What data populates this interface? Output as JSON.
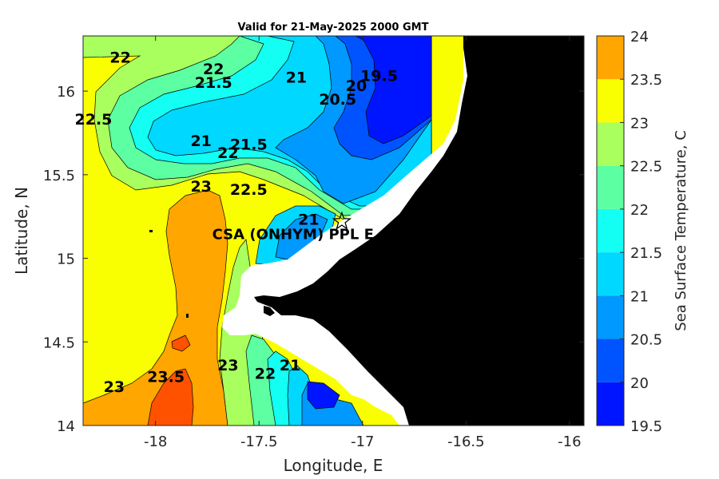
{
  "chart_data": {
    "type": "contour map",
    "title": "Valid for 21-May-2025 2000 GMT",
    "xlabel": "Longitude, E",
    "ylabel": "Latitude, N",
    "xlim": [
      -18.35,
      -15.93
    ],
    "ylim": [
      14.0,
      16.33
    ],
    "xticks": [
      -18,
      -17.5,
      -17,
      -16.5,
      -16
    ],
    "yticks": [
      14,
      14.5,
      15,
      15.5,
      16
    ],
    "colorbar": {
      "label": "Sea Surface Temperature, C",
      "levels": [
        19.5,
        20,
        20.5,
        21,
        21.5,
        22,
        22.5,
        23,
        23.5,
        24
      ],
      "colors": [
        "#0015ff",
        "#0054ff",
        "#0099ff",
        "#00d8ff",
        "#13fff3",
        "#5cffa2",
        "#a8ff5d",
        "#f9ff00",
        "#ffa600",
        "#ff5200"
      ]
    },
    "contour_labels": [
      {
        "text": "22",
        "lon": -18.17,
        "lat": 16.17
      },
      {
        "text": "22",
        "lon": -17.72,
        "lat": 16.1
      },
      {
        "text": "21.5",
        "lon": -17.72,
        "lat": 16.02
      },
      {
        "text": "21",
        "lon": -17.32,
        "lat": 16.05
      },
      {
        "text": "20.5",
        "lon": -17.12,
        "lat": 15.92
      },
      {
        "text": "20",
        "lon": -17.03,
        "lat": 16.0
      },
      {
        "text": "19.5",
        "lon": -16.92,
        "lat": 16.06
      },
      {
        "text": "22.5",
        "lon": -18.3,
        "lat": 15.8
      },
      {
        "text": "21",
        "lon": -17.78,
        "lat": 15.67
      },
      {
        "text": "21.5",
        "lon": -17.55,
        "lat": 15.65
      },
      {
        "text": "22",
        "lon": -17.65,
        "lat": 15.6
      },
      {
        "text": "23",
        "lon": -17.78,
        "lat": 15.4
      },
      {
        "text": "22.5",
        "lon": -17.55,
        "lat": 15.38
      },
      {
        "text": "21",
        "lon": -17.26,
        "lat": 15.2
      },
      {
        "text": "23",
        "lon": -17.65,
        "lat": 14.33
      },
      {
        "text": "22",
        "lon": -17.47,
        "lat": 14.28
      },
      {
        "text": "21",
        "lon": -17.35,
        "lat": 14.33
      },
      {
        "text": "23",
        "lon": -18.2,
        "lat": 14.2
      },
      {
        "text": "23.5",
        "lon": -17.95,
        "lat": 14.26
      }
    ],
    "site": {
      "label": "CSA (ONHYM) PPL E",
      "lon": -17.1,
      "lat": 15.22
    }
  }
}
